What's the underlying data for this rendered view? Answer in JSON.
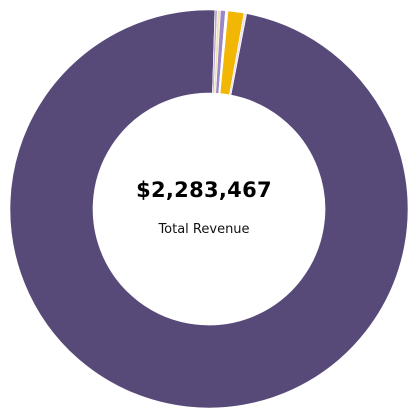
{
  "chart_data": {
    "type": "pie",
    "style": "donut",
    "center_value": "$2,283,467",
    "center_label": "Total Revenue",
    "slices": [
      {
        "share": 0.9745,
        "color": "#574a79"
      },
      {
        "share": 0.002,
        "color": "#b8a9d6"
      },
      {
        "share": 0.0025,
        "color": "#f3e3b0"
      },
      {
        "share": 0.004,
        "color": "#9a86c8"
      },
      {
        "share": 0.002,
        "color": "#ffffff"
      },
      {
        "share": 0.013,
        "color": "#f2b705"
      },
      {
        "share": 0.002,
        "color": "#e8e0f4"
      }
    ],
    "legend": "none"
  }
}
